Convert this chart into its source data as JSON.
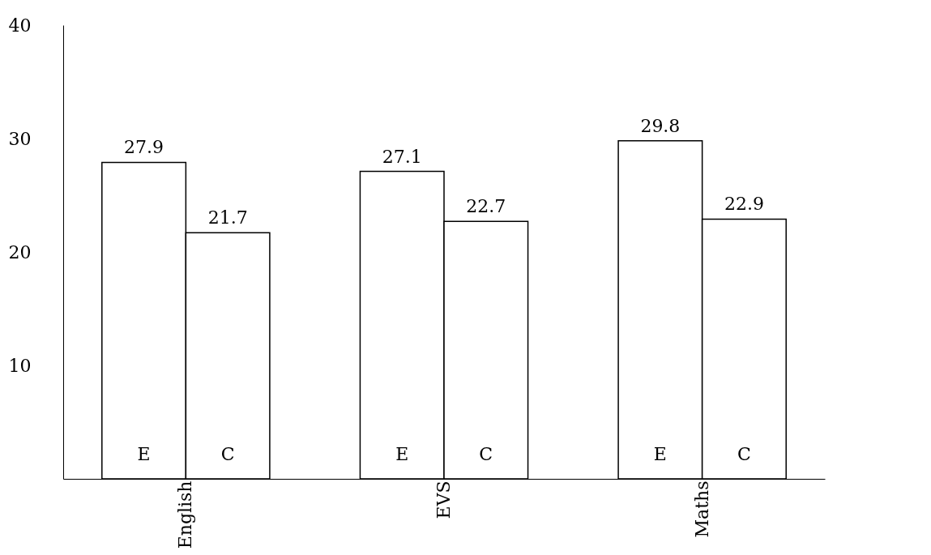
{
  "chart_data": {
    "type": "bar",
    "categories": [
      "English",
      "EVS",
      "Maths"
    ],
    "series": [
      {
        "name": "E",
        "color": "#ffffff",
        "values": [
          27.9,
          27.1,
          29.8
        ]
      },
      {
        "name": "C",
        "color": "#ffffff",
        "values": [
          21.7,
          22.7,
          22.9
        ]
      }
    ],
    "ylim": [
      0,
      40
    ],
    "yticks": [
      10,
      20,
      30,
      40
    ],
    "data_labels": true,
    "grid": false,
    "legend": false
  }
}
